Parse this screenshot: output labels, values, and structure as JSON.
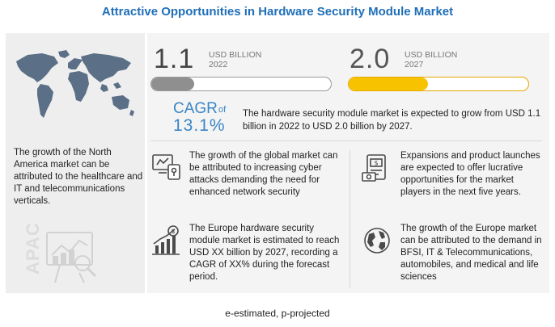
{
  "title": "Attractive Opportunities in Hardware Security Module Market",
  "stats": {
    "y2022": {
      "value": "1.1",
      "unit": "USD BILLION",
      "year": "2022",
      "fill_fraction": 0.24
    },
    "y2027": {
      "value": "2.0",
      "unit": "USD BILLION",
      "year": "2027",
      "fill_fraction": 0.44
    }
  },
  "cagr": {
    "label": "CAGR",
    "of": "of",
    "value": "13.1%",
    "description": "The hardware security module market is expected to grow from USD 1.1 billion in 2022 to USD 2.0 billion by 2027."
  },
  "left_panel": {
    "text": "The growth of the North America market can be attributed to the healthcare and IT and telecommunications verticals.",
    "region_label": "APAC"
  },
  "features": [
    {
      "icon": "cyber-attack-icon",
      "text": "The growth of the global market can be attributed to increasing cyber attacks demanding the need for enhanced network security"
    },
    {
      "icon": "money-expansion-icon",
      "text": "Expansions and product launches are expected to offer lucrative opportunities for the market players in the next five years."
    },
    {
      "icon": "growth-chart-icon",
      "text": "The Europe hardware security module market is estimated to reach USD XX billion by 2027, recording a CAGR of XX% during the forecast period."
    },
    {
      "icon": "globe-icon",
      "text": "The growth of the Europe market can be attributed to the demand in BFSI, IT & Telecommunications, automobiles, and medical and life sciences"
    }
  ],
  "footnote": "e-estimated, p-projected",
  "colors": {
    "accent": "#1f6fb8",
    "cagr": "#3a85c6",
    "bar_2022": "#8f8f8f",
    "bar_2027": "#f7c300"
  }
}
